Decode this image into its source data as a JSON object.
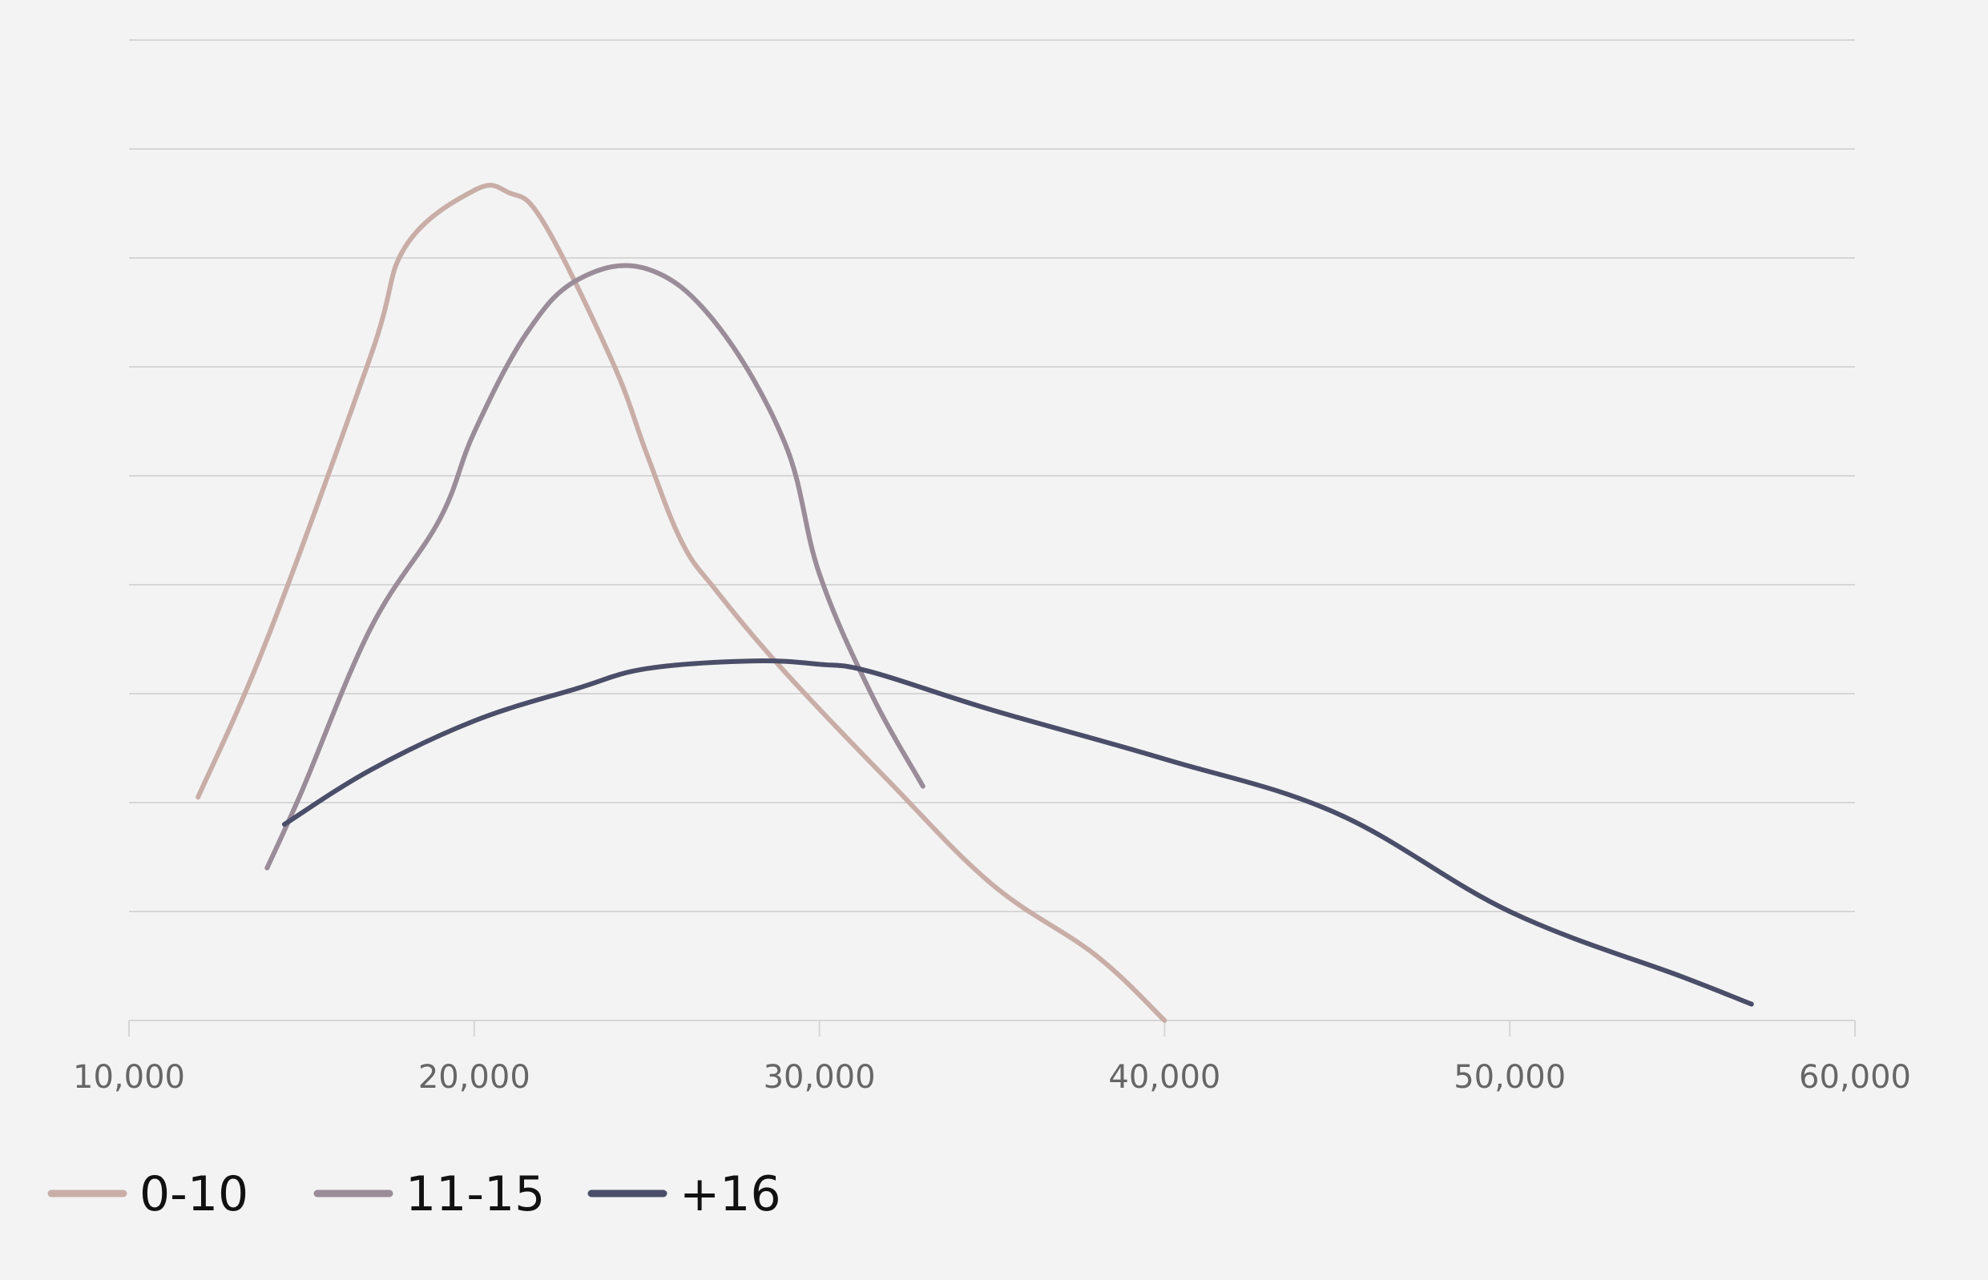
{
  "chart_data": {
    "type": "line",
    "title": "",
    "xlabel": "",
    "ylabel": "",
    "xlim": [
      10000,
      60000
    ],
    "ylim": [
      0,
      9
    ],
    "grid": true,
    "legend_position": "bottom-left",
    "x_ticks": [
      {
        "value": 10000,
        "label": "10,000"
      },
      {
        "value": 20000,
        "label": "20,000"
      },
      {
        "value": 30000,
        "label": "30,000"
      },
      {
        "value": 40000,
        "label": "40,000"
      },
      {
        "value": 50000,
        "label": "50,000"
      },
      {
        "value": 60000,
        "label": "60,000"
      }
    ],
    "y_gridlines": [
      0,
      1,
      2,
      3,
      4,
      5,
      6,
      7,
      8,
      9
    ],
    "series": [
      {
        "name": "0-10",
        "color": "#c9ada7",
        "points": [
          [
            12000,
            2.05
          ],
          [
            14000,
            3.5
          ],
          [
            17000,
            6.1
          ],
          [
            18000,
            7.1
          ],
          [
            20000,
            7.62
          ],
          [
            21000,
            7.6
          ],
          [
            22000,
            7.33
          ],
          [
            24000,
            6.05
          ],
          [
            25000,
            5.2
          ],
          [
            26000,
            4.4
          ],
          [
            27000,
            3.95
          ],
          [
            29000,
            3.2
          ],
          [
            32000,
            2.2
          ],
          [
            35000,
            1.25
          ],
          [
            38000,
            0.6
          ],
          [
            40000,
            0.0
          ]
        ]
      },
      {
        "name": "11-15",
        "color": "#9a8c98",
        "points": [
          [
            14000,
            1.4
          ],
          [
            15000,
            2.1
          ],
          [
            17000,
            3.6
          ],
          [
            19000,
            4.6
          ],
          [
            20000,
            5.4
          ],
          [
            21500,
            6.3
          ],
          [
            23000,
            6.8
          ],
          [
            25000,
            6.9
          ],
          [
            27000,
            6.4
          ],
          [
            29000,
            5.3
          ],
          [
            30000,
            4.1
          ],
          [
            31500,
            3.0
          ],
          [
            33000,
            2.15
          ]
        ]
      },
      {
        "name": "+16",
        "color": "#4a4e69",
        "points": [
          [
            14500,
            1.8
          ],
          [
            17000,
            2.3
          ],
          [
            20000,
            2.75
          ],
          [
            23000,
            3.05
          ],
          [
            25000,
            3.23
          ],
          [
            28000,
            3.3
          ],
          [
            30000,
            3.27
          ],
          [
            31500,
            3.2
          ],
          [
            35000,
            2.85
          ],
          [
            40000,
            2.4
          ],
          [
            45000,
            1.9
          ],
          [
            50000,
            1.0
          ],
          [
            55000,
            0.4
          ],
          [
            57000,
            0.15
          ]
        ]
      }
    ]
  }
}
